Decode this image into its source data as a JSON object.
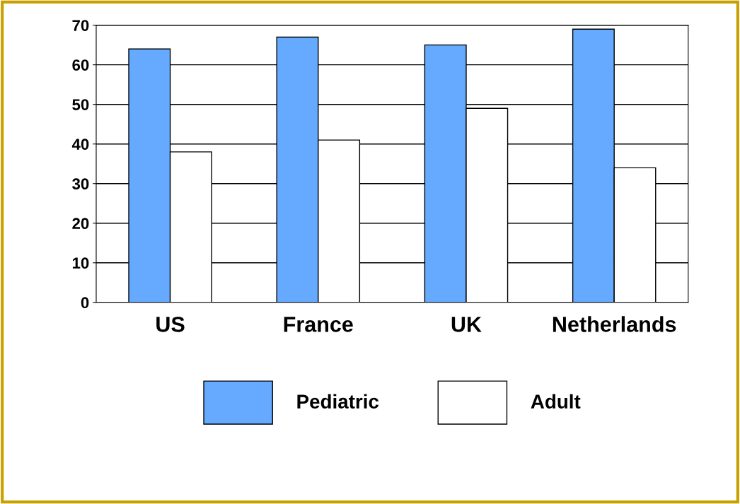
{
  "chart_data": {
    "type": "bar",
    "categories": [
      "US",
      "France",
      "UK",
      "Netherlands"
    ],
    "series": [
      {
        "name": "Pediatric",
        "color": "#66aaff",
        "values": [
          64,
          67,
          65,
          69
        ]
      },
      {
        "name": "Adult",
        "color": "#ffffff",
        "values": [
          38,
          41,
          49,
          34
        ]
      }
    ],
    "ylim": [
      0,
      70
    ],
    "yticks": [
      0,
      10,
      20,
      30,
      40,
      50,
      60,
      70
    ],
    "grid": "y",
    "legend": "bottom"
  }
}
